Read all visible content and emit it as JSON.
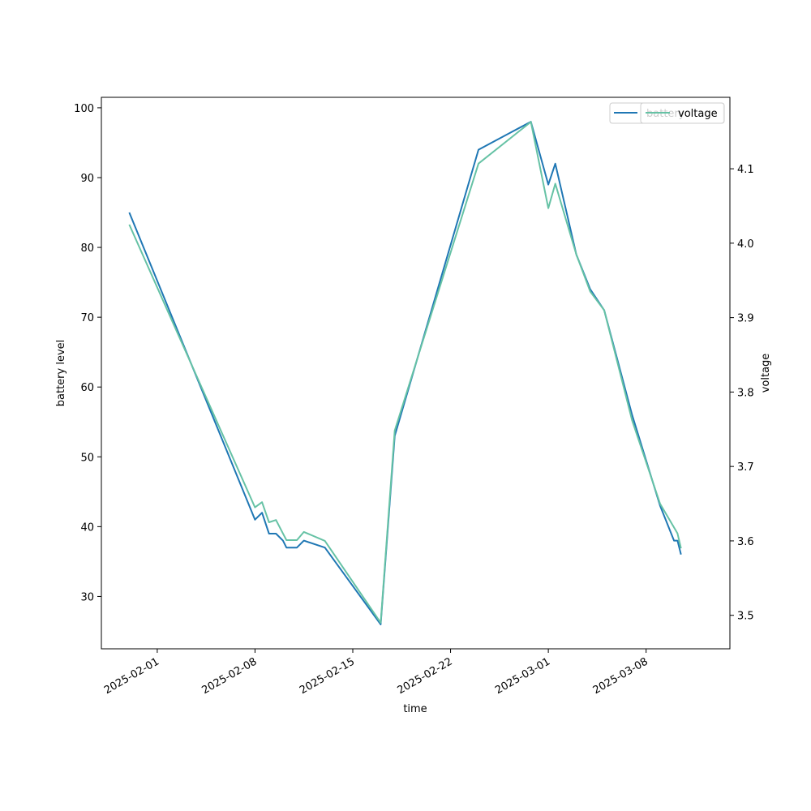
{
  "chart_data": {
    "type": "line",
    "xlabel": "time",
    "ylabel_left": "battery level",
    "ylabel_right": "voltage",
    "x_range": [
      "2025-01-28",
      "2025-03-14"
    ],
    "ylim_left": [
      22.5,
      101.5
    ],
    "ylim_right": [
      3.455,
      4.196
    ],
    "x_ticks": [
      "2025-02-01",
      "2025-02-08",
      "2025-02-15",
      "2025-02-22",
      "2025-03-01",
      "2025-03-08"
    ],
    "y_ticks_left": [
      30,
      40,
      50,
      60,
      70,
      80,
      90,
      100
    ],
    "y_ticks_right": [
      "3.5",
      "3.6",
      "3.7",
      "3.8",
      "3.9",
      "4.0",
      "4.1"
    ],
    "grid": false,
    "legend_left": {
      "placement": "top-right",
      "label": "battery"
    },
    "legend_right": {
      "placement": "top-right",
      "label": "voltage"
    },
    "series": [
      {
        "name": "battery",
        "axis": "left",
        "color": "#1f77b4",
        "points": [
          [
            "2025-01-30",
            85
          ],
          [
            "2025-02-08",
            41
          ],
          [
            "2025-02-08T12:00",
            42
          ],
          [
            "2025-02-09",
            39
          ],
          [
            "2025-02-09T12:00",
            39
          ],
          [
            "2025-02-10",
            38
          ],
          [
            "2025-02-10T06:00",
            37
          ],
          [
            "2025-02-11",
            37
          ],
          [
            "2025-02-11T12:00",
            38
          ],
          [
            "2025-02-13",
            37
          ],
          [
            "2025-02-17",
            26
          ],
          [
            "2025-02-18",
            53
          ],
          [
            "2025-02-24",
            94
          ],
          [
            "2025-02-27T18:00",
            98
          ],
          [
            "2025-02-29",
            89
          ],
          [
            "2025-02-29T12:00",
            92
          ],
          [
            "2025-03-03",
            79
          ],
          [
            "2025-03-04",
            74
          ],
          [
            "2025-03-05",
            71
          ],
          [
            "2025-03-07",
            56
          ],
          [
            "2025-03-09",
            43
          ],
          [
            "2025-03-10",
            38
          ],
          [
            "2025-03-10T06:00",
            38
          ],
          [
            "2025-03-10T12:00",
            36
          ]
        ]
      },
      {
        "name": "voltage",
        "axis": "right",
        "color": "#66c2a5",
        "points": [
          [
            "2025-01-30",
            4.025
          ],
          [
            "2025-02-08",
            3.645
          ],
          [
            "2025-02-08T12:00",
            3.652
          ],
          [
            "2025-02-09",
            3.625
          ],
          [
            "2025-02-09T12:00",
            3.628
          ],
          [
            "2025-02-10",
            3.61
          ],
          [
            "2025-02-10T06:00",
            3.601
          ],
          [
            "2025-02-11",
            3.601
          ],
          [
            "2025-02-11T12:00",
            3.612
          ],
          [
            "2025-02-13",
            3.6
          ],
          [
            "2025-02-17",
            3.49
          ],
          [
            "2025-02-18",
            3.748
          ],
          [
            "2025-02-24",
            4.107
          ],
          [
            "2025-02-27T18:00",
            4.163
          ],
          [
            "2025-02-29",
            4.047
          ],
          [
            "2025-02-29T12:00",
            4.08
          ],
          [
            "2025-03-03",
            3.985
          ],
          [
            "2025-03-04",
            3.935
          ],
          [
            "2025-03-05",
            3.91
          ],
          [
            "2025-03-07",
            3.762
          ],
          [
            "2025-03-09",
            3.65
          ],
          [
            "2025-03-10",
            3.618
          ],
          [
            "2025-03-10T06:00",
            3.61
          ],
          [
            "2025-03-10T12:00",
            3.59
          ]
        ]
      }
    ]
  }
}
